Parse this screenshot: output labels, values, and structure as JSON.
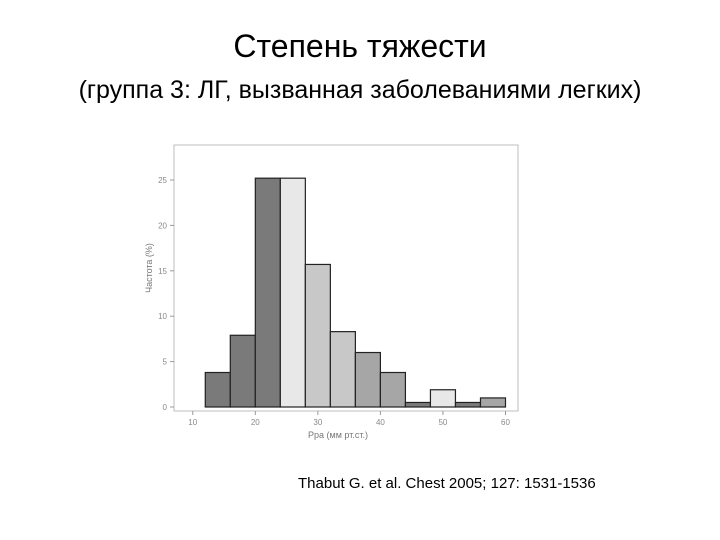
{
  "slide": {
    "title": "Степень тяжести",
    "subtitle": "(группа 3: ЛГ, вызванная заболеваниями легких)",
    "citation": "Thabut G. et al. Chest 2005; 127: 1531-1536"
  },
  "chart_data": {
    "type": "bar",
    "title": "",
    "xlabel": "Ppa (мм рт.ст.)",
    "ylabel": "Частота (%)",
    "xlim": [
      7,
      62
    ],
    "ylim": [
      0,
      26
    ],
    "xticks": [
      "10",
      "20",
      "30",
      "40",
      "50",
      "60"
    ],
    "yticks": [
      "0",
      "5",
      "10",
      "15",
      "20",
      "25"
    ],
    "grid": false,
    "bins": [
      {
        "x0": 12,
        "x1": 16,
        "value": 3.8,
        "color": "#7a7a7a"
      },
      {
        "x0": 16,
        "x1": 20,
        "value": 7.9,
        "color": "#7a7a7a"
      },
      {
        "x0": 20,
        "x1": 24,
        "value": 25.2,
        "color": "#7a7a7a"
      },
      {
        "x0": 24,
        "x1": 28,
        "value": 25.2,
        "color": "#e8e8e8"
      },
      {
        "x0": 28,
        "x1": 32,
        "value": 15.7,
        "color": "#c8c8c8"
      },
      {
        "x0": 32,
        "x1": 36,
        "value": 8.3,
        "color": "#c8c8c8"
      },
      {
        "x0": 36,
        "x1": 40,
        "value": 6.0,
        "color": "#a6a6a6"
      },
      {
        "x0": 40,
        "x1": 44,
        "value": 3.8,
        "color": "#a6a6a6"
      },
      {
        "x0": 44,
        "x1": 48,
        "value": 0.5,
        "color": "#7a7a7a"
      },
      {
        "x0": 48,
        "x1": 52,
        "value": 1.9,
        "color": "#e8e8e8"
      },
      {
        "x0": 52,
        "x1": 56,
        "value": 0.5,
        "color": "#7a7a7a"
      },
      {
        "x0": 56,
        "x1": 60,
        "value": 1.0,
        "color": "#a6a6a6"
      }
    ]
  }
}
